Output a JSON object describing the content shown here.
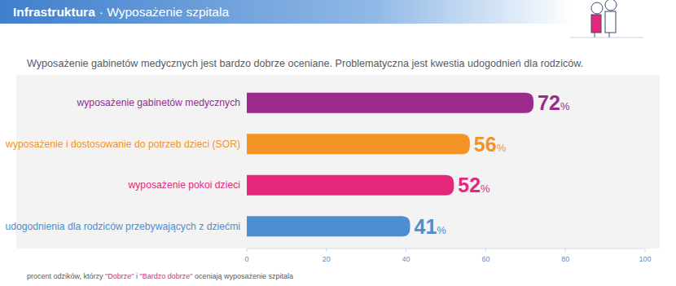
{
  "chart_data": {
    "type": "bar",
    "orientation": "horizontal",
    "section": "Infrastruktura",
    "title": "· Wyposażenie szpitala",
    "subtitle": "Wyposażenie gabinetów medycznych jest bardzo dobrze oceniane. Problematyczna jest kwestia udogodnień dla rodziców.",
    "categories": [
      "wyposażenie gabinetów medycznych",
      "wyposażenie i dostosowanie do potrzeb dzieci (SOR)",
      "wyposażenie pokoi dzieci",
      "udogodnienia dla rodziców przebywających z dziećmi"
    ],
    "values": [
      72,
      56,
      52,
      41
    ],
    "value_labels": [
      "72%",
      "56%",
      "52%",
      "41%"
    ],
    "colors": [
      "#9a2a8c",
      "#f39326",
      "#e5287b",
      "#4b8fd0"
    ],
    "data_labels": true,
    "grid": false,
    "xlim": [
      0,
      100
    ],
    "xticks": [
      0,
      20,
      40,
      60,
      80,
      100
    ],
    "footnote": [
      "procent odzików, którzy ",
      "\"Dobrze\"",
      " i ",
      "\"Bardzo dobrze\"",
      " oceniają wyposażenie szpitala"
    ]
  }
}
